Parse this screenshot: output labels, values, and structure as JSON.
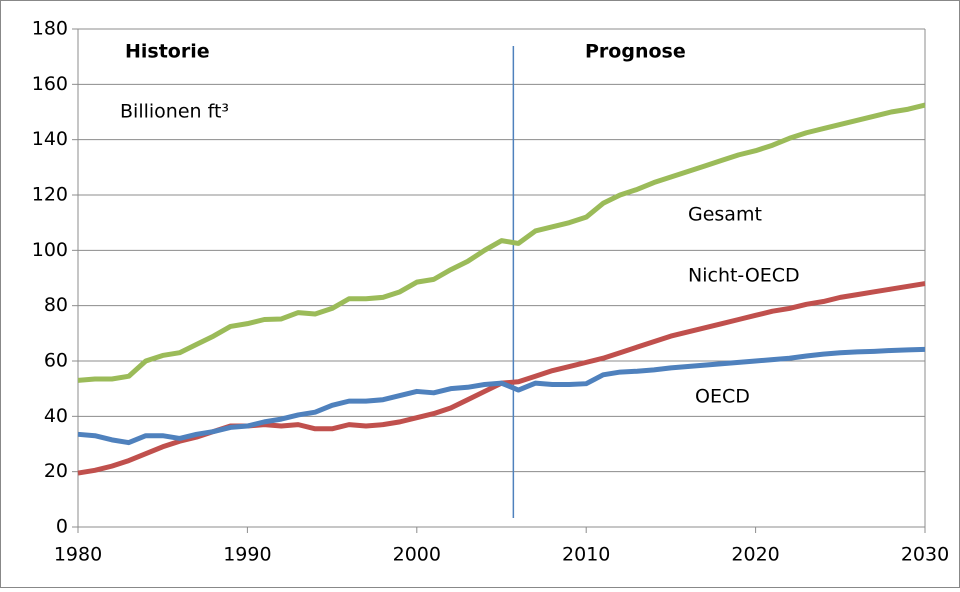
{
  "chart_data": {
    "type": "line",
    "annotations": [
      "Historie",
      "Prognose",
      "Billionen ft³"
    ],
    "divider_x": 2005.7,
    "x": [
      1980,
      1981,
      1982,
      1983,
      1984,
      1985,
      1986,
      1987,
      1988,
      1989,
      1990,
      1991,
      1992,
      1993,
      1994,
      1995,
      1996,
      1997,
      1998,
      1999,
      2000,
      2001,
      2002,
      2003,
      2004,
      2005,
      2006,
      2007,
      2008,
      2009,
      2010,
      2011,
      2012,
      2013,
      2014,
      2015,
      2016,
      2017,
      2018,
      2019,
      2020,
      2021,
      2022,
      2023,
      2024,
      2025,
      2026,
      2027,
      2028,
      2029,
      2030
    ],
    "series": [
      {
        "name": "Gesamt",
        "color": "#9bbb59",
        "values": [
          53,
          53.5,
          53.5,
          54.5,
          60,
          62,
          63,
          66,
          69,
          72.5,
          73.5,
          75,
          75.2,
          77.5,
          77,
          79,
          82.5,
          82.5,
          83,
          85,
          88.5,
          89.5,
          93,
          96,
          100,
          103.5,
          102.5,
          107,
          108.5,
          110,
          112,
          117,
          120,
          122,
          124.5,
          126.5,
          128.5,
          130.5,
          132.5,
          134.5,
          136,
          138,
          140.5,
          142.5,
          144,
          145.5,
          147,
          148.5,
          150,
          151,
          152.5
        ]
      },
      {
        "name": "Nicht-OECD",
        "color": "#c0504d",
        "values": [
          19.5,
          20.5,
          22,
          24,
          26.5,
          29,
          31,
          32.5,
          34.5,
          36.5,
          36.5,
          37,
          36.5,
          37,
          35.5,
          35.5,
          37,
          36.5,
          37,
          38,
          39.5,
          41,
          43,
          46,
          49,
          52,
          52.5,
          54.5,
          56.5,
          58,
          59.5,
          61,
          63,
          65,
          67,
          69,
          70.5,
          72,
          73.5,
          75,
          76.5,
          78,
          79,
          80.5,
          81.5,
          83,
          84,
          85,
          86,
          87,
          88
        ]
      },
      {
        "name": "OECD",
        "color": "#4f81bd",
        "values": [
          33.5,
          33,
          31.5,
          30.5,
          33,
          33,
          32,
          33.5,
          34.5,
          36,
          36.5,
          38,
          39,
          40.5,
          41.5,
          44,
          45.5,
          45.5,
          46,
          47.5,
          49,
          48.5,
          50,
          50.5,
          51.5,
          52,
          49.5,
          52,
          51.5,
          51.5,
          51.8,
          55,
          56,
          56.3,
          56.8,
          57.5,
          58,
          58.5,
          59,
          59.5,
          60,
          60.5,
          61,
          61.8,
          62.5,
          63,
          63.3,
          63.5,
          63.8,
          64,
          64.2
        ]
      }
    ],
    "xlim": [
      1980,
      2030
    ],
    "xticks": [
      1980,
      1990,
      2000,
      2010,
      2020,
      2030
    ],
    "ylim": [
      0,
      180
    ],
    "yticks": [
      0,
      20,
      40,
      60,
      80,
      100,
      120,
      140,
      160,
      180
    ],
    "grid": true
  }
}
